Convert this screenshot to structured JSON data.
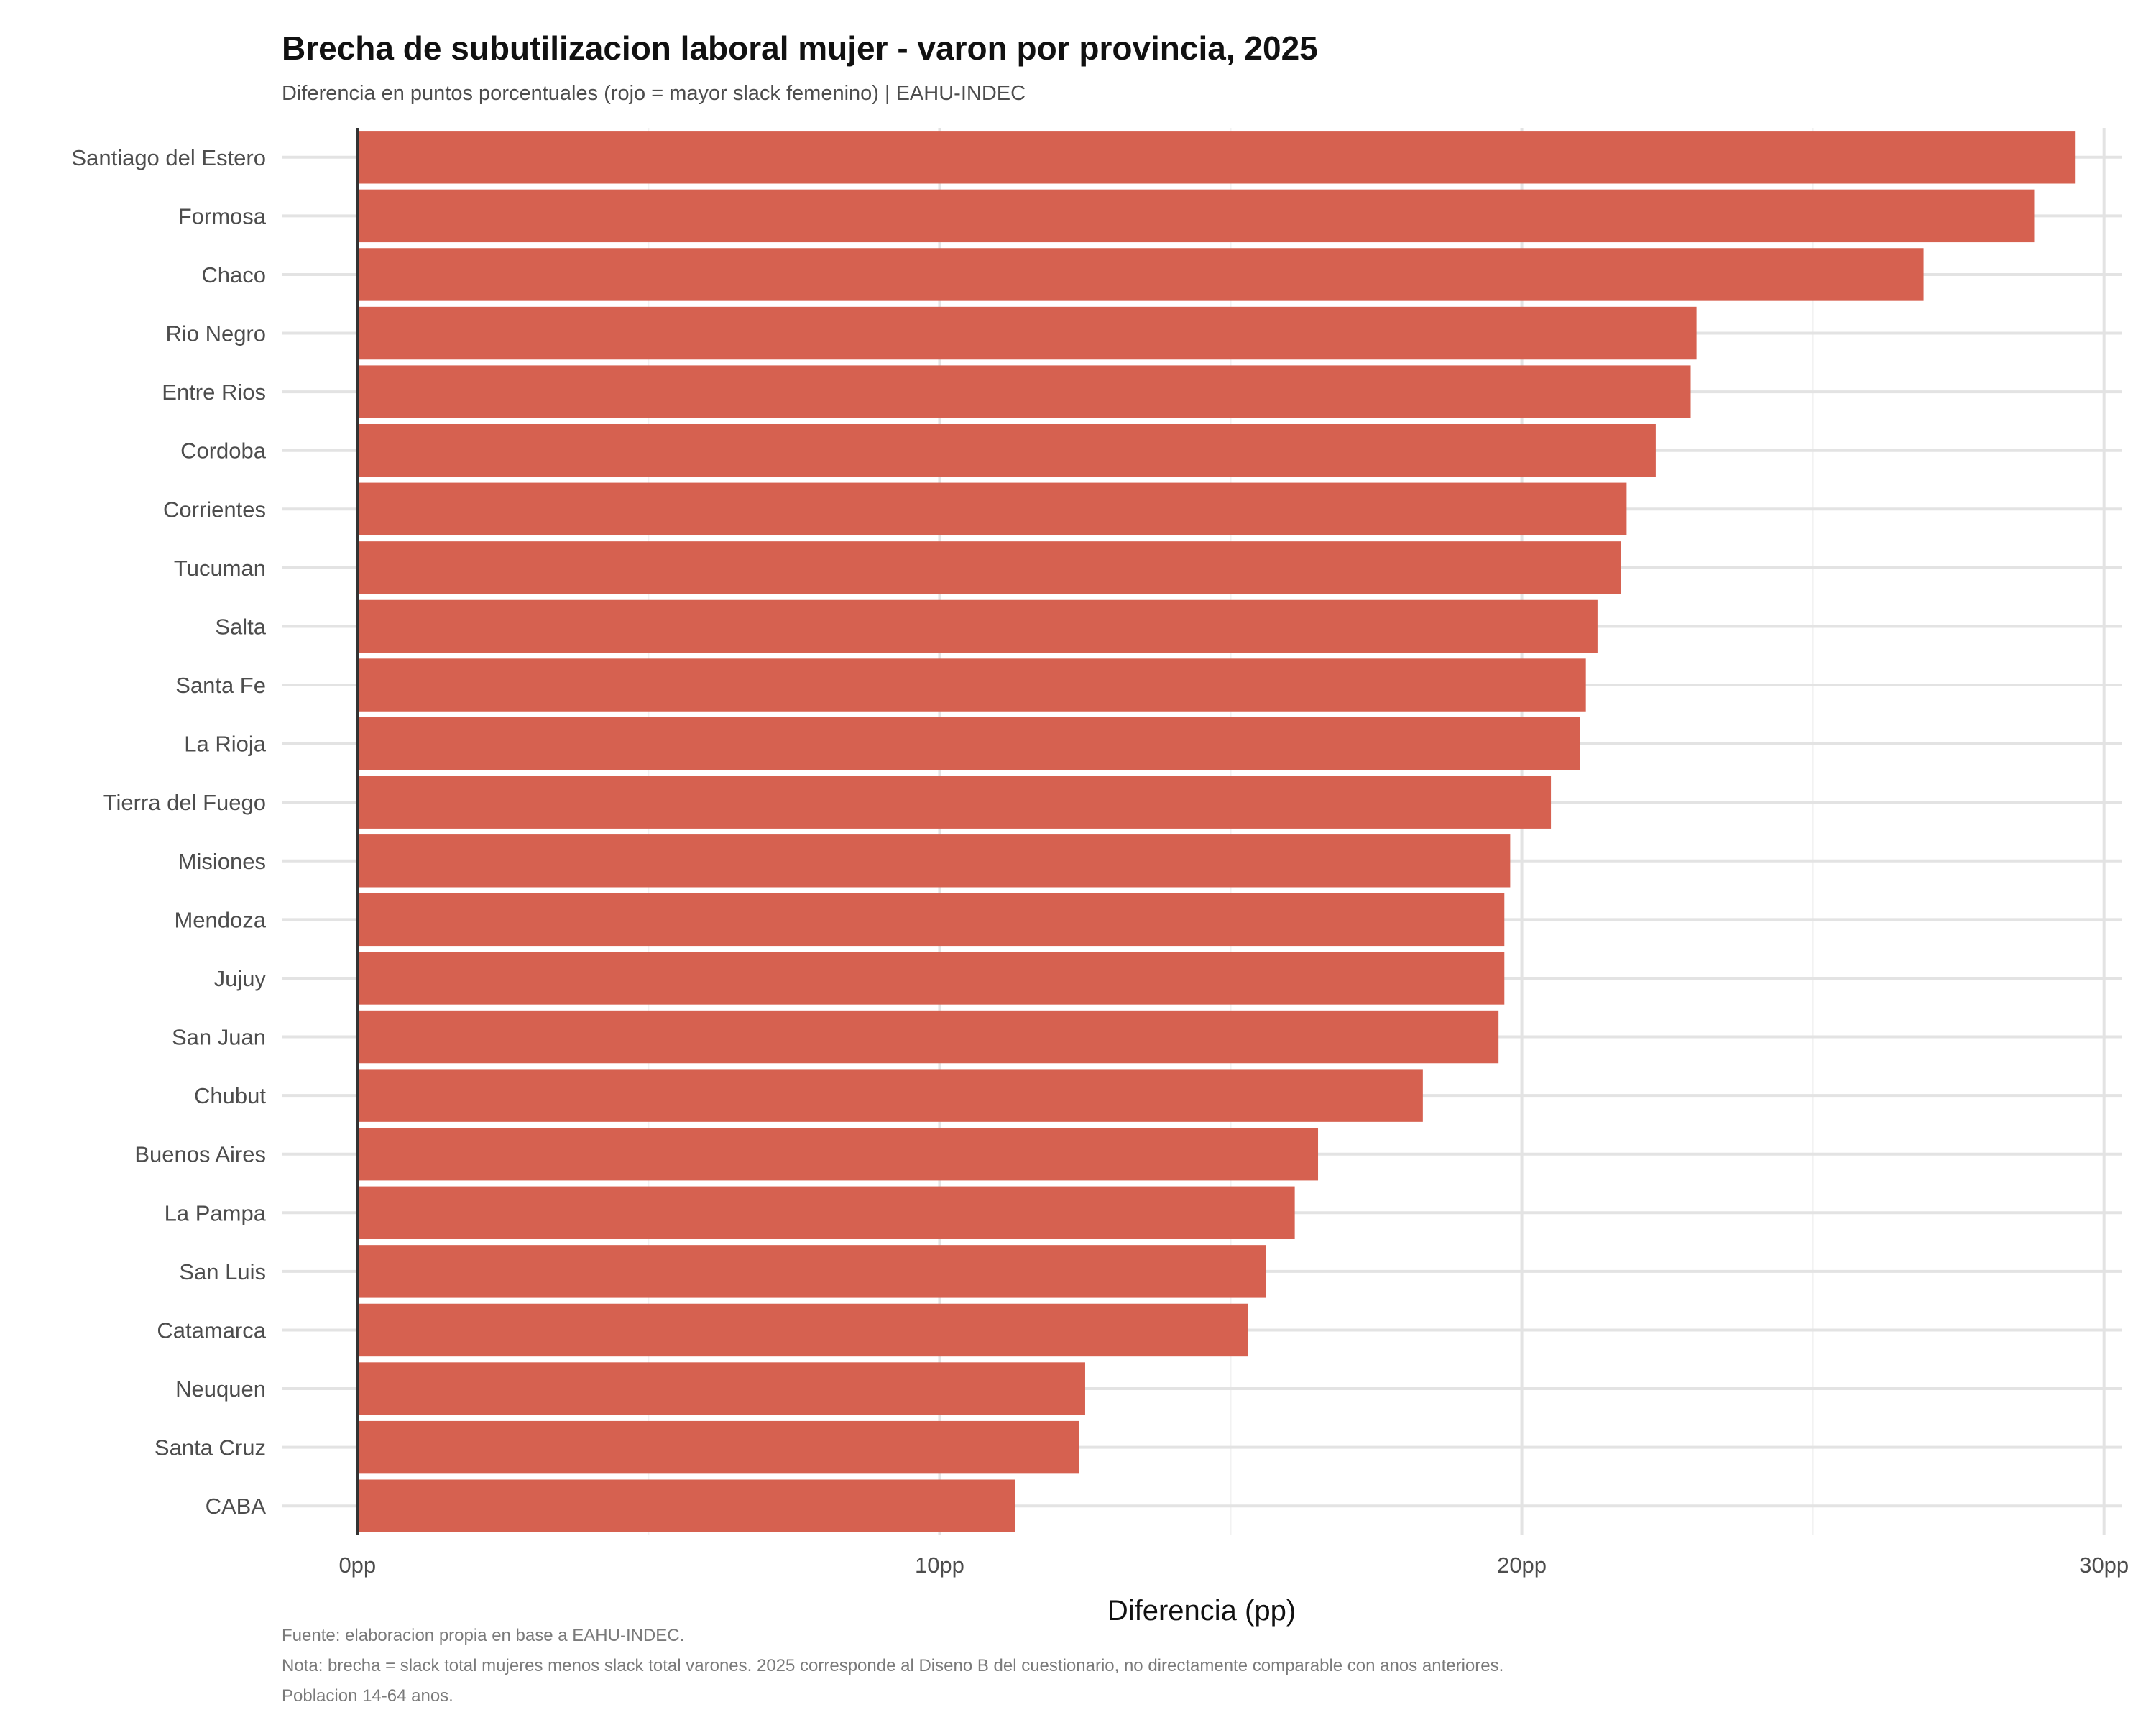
{
  "title": "Brecha de subutilizacion laboral mujer - varon por provincia, 2025",
  "subtitle": "Diferencia en puntos porcentuales (rojo = mayor slack femenino) | EAHU-INDEC",
  "caption": {
    "line1": "Fuente: elaboracion propia en base a EAHU-INDEC.",
    "line2": "Nota: brecha = slack total mujeres menos slack total varones. 2025 corresponde al Diseno B del cuestionario, no directamente comparable con anos anteriores.",
    "line3": "Poblacion 14-64 anos."
  },
  "chart_data": {
    "type": "bar",
    "orientation": "horizontal",
    "title": "Brecha de subutilizacion laboral mujer - varon por provincia, 2025",
    "subtitle": "Diferencia en puntos porcentuales (rojo = mayor slack femenino) | EAHU-INDEC",
    "xlabel": "Diferencia (pp)",
    "ylabel": "",
    "xlim": [
      -1.3,
      30.3
    ],
    "xticks": [
      0,
      10,
      20,
      30
    ],
    "xtick_labels": [
      "0pp",
      "10pp",
      "20pp",
      "30pp"
    ],
    "grid": true,
    "bar_color": "#d66150",
    "categories": [
      "Santiago del Estero",
      "Formosa",
      "Chaco",
      "Rio Negro",
      "Entre Rios",
      "Cordoba",
      "Corrientes",
      "Tucuman",
      "Salta",
      "Santa Fe",
      "La Rioja",
      "Tierra del Fuego",
      "Misiones",
      "Mendoza",
      "Jujuy",
      "San Juan",
      "Chubut",
      "Buenos Aires",
      "La Pampa",
      "San Luis",
      "Catamarca",
      "Neuquen",
      "Santa Cruz",
      "CABA"
    ],
    "values": [
      29.5,
      28.8,
      26.9,
      23.0,
      22.9,
      22.3,
      21.8,
      21.7,
      21.3,
      21.1,
      21.0,
      20.5,
      19.8,
      19.7,
      19.7,
      19.6,
      18.3,
      16.5,
      16.1,
      15.6,
      15.3,
      12.5,
      12.4,
      11.3
    ]
  }
}
